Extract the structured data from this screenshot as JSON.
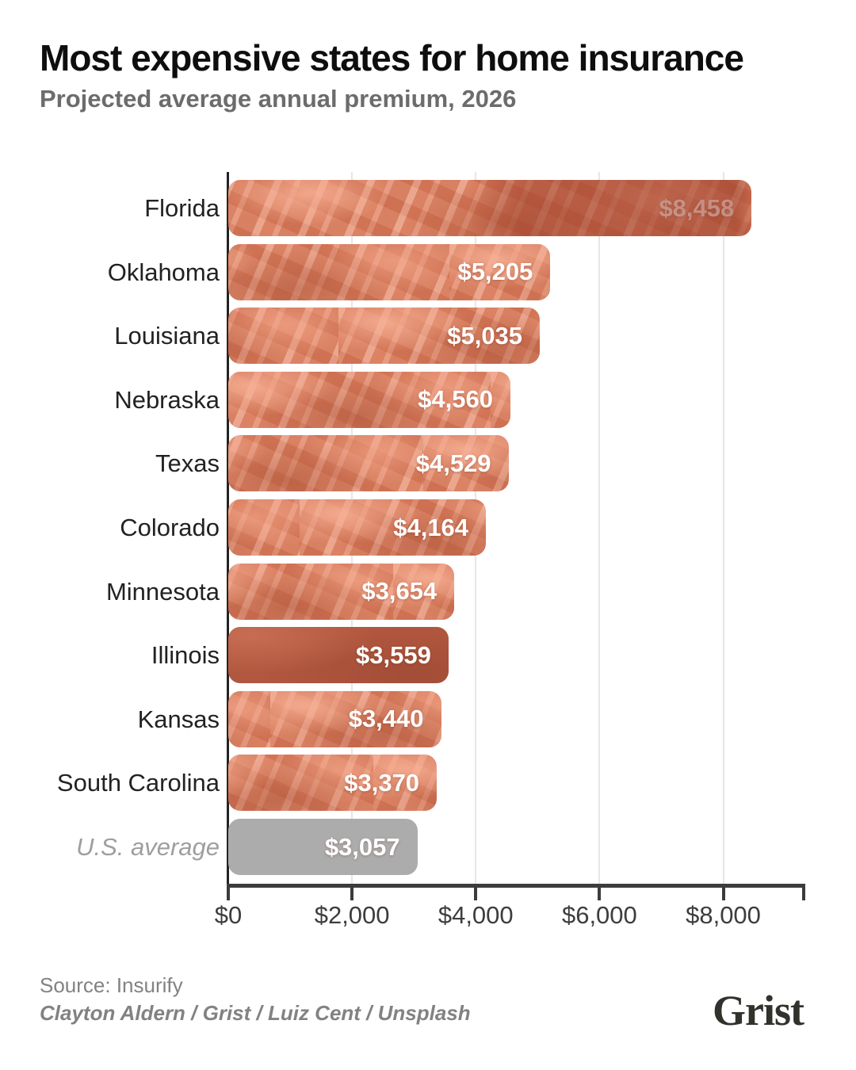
{
  "header": {
    "title": "Most expensive states for home insurance",
    "subtitle": "Projected average annual premium, 2026"
  },
  "chart_data": {
    "type": "bar",
    "orientation": "horizontal",
    "title": "Most expensive states for home insurance",
    "subtitle": "Projected average annual premium, 2026",
    "categories": [
      "Florida",
      "Oklahoma",
      "Louisiana",
      "Nebraska",
      "Texas",
      "Colorado",
      "Minnesota",
      "Illinois",
      "Kansas",
      "South Carolina",
      "U.S. average"
    ],
    "values": [
      8458,
      5205,
      5035,
      4560,
      4529,
      4164,
      3654,
      3559,
      3440,
      3370,
      3057
    ],
    "value_labels": [
      "$8,458",
      "$5,205",
      "$5,035",
      "$4,560",
      "$4,529",
      "$4,164",
      "$3,654",
      "$3,559",
      "$3,440",
      "$3,370",
      "$3,057"
    ],
    "row_styles": [
      "photo patch",
      "photo",
      "photo",
      "photo",
      "photo",
      "photo",
      "photo",
      "dark",
      "photo",
      "photo",
      "gray"
    ],
    "xlabel": "",
    "ylabel": "",
    "xlim": [
      0,
      9300
    ],
    "x_ticks": [
      {
        "value": 0,
        "label": "$0"
      },
      {
        "value": 2000,
        "label": "$2,000"
      },
      {
        "value": 4000,
        "label": "$4,000"
      },
      {
        "value": 6000,
        "label": "$6,000"
      },
      {
        "value": 8000,
        "label": "$8,000"
      }
    ],
    "end_tick": true,
    "grid": "vertical",
    "legend_position": "none",
    "colors": {
      "bar_base": "#e08262",
      "bar_dark": "#b2573f",
      "average_bar": "#acacac",
      "value_text": "#ffffff",
      "axis": "#3c3c3c",
      "gridline": "#e6e6e6",
      "label_text": "#222222",
      "average_label_text": "#9e9e9e"
    }
  },
  "footer": {
    "source": "Source: Insurify",
    "credits": "Clayton Aldern / Grist / Luiz Cent / Unsplash",
    "logo": "Grist"
  }
}
